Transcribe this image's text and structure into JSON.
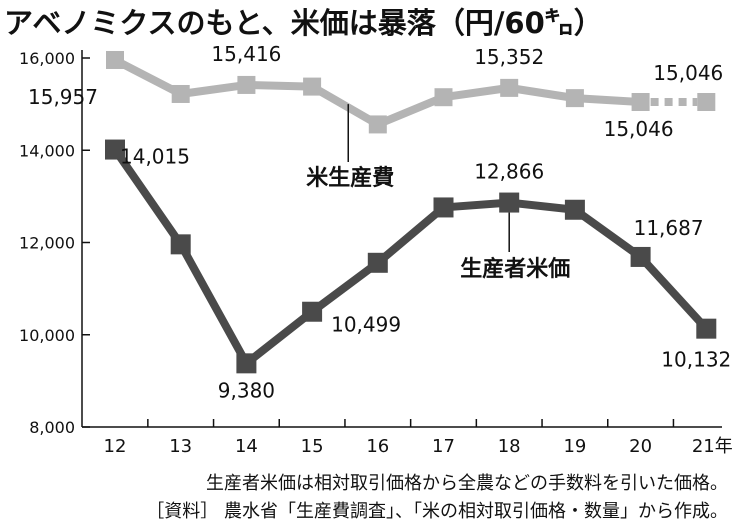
{
  "header": {
    "title": "アベノミクスのもと、米価は暴落",
    "unit": "（円/60㌔）"
  },
  "notes": {
    "line1": "生産者米価は相対取引価格から全農などの手数料を引いた価格。",
    "line2": "［資料］ 農水省「生産費調査」、「米の相対取引価格・数量」から作成。"
  },
  "colors": {
    "cost_series": "#b4b4b4",
    "price_series": "#4a4a4a",
    "axis": "#111111"
  },
  "chart_data": {
    "type": "line",
    "x": [
      "12",
      "13",
      "14",
      "15",
      "16",
      "17",
      "18",
      "19",
      "20",
      "21年"
    ],
    "ylim": [
      8000,
      16000
    ],
    "yticks": [
      "8,000",
      "10,000",
      "12,000",
      "14,000",
      "16,000"
    ],
    "ytick_values": [
      8000,
      10000,
      12000,
      14000,
      16000
    ],
    "grid": false,
    "series": [
      {
        "name": "米生産費",
        "values": [
          15957,
          15220,
          15416,
          15380,
          14560,
          15150,
          15352,
          15130,
          15046,
          15046
        ],
        "projected_last": true,
        "data_labels": [
          {
            "index": 0,
            "text": "15,957"
          },
          {
            "index": 2,
            "text": "15,416"
          },
          {
            "index": 6,
            "text": "15,352"
          },
          {
            "index": 8,
            "text": "15,046"
          },
          {
            "index": 9,
            "text": "15,046"
          }
        ]
      },
      {
        "name": "生産者米価",
        "values": [
          14015,
          11960,
          9380,
          10499,
          11560,
          12760,
          12866,
          12710,
          11687,
          10132
        ],
        "projected_last": false,
        "data_labels": [
          {
            "index": 0,
            "text": "14,015"
          },
          {
            "index": 2,
            "text": "9,380"
          },
          {
            "index": 3,
            "text": "10,499"
          },
          {
            "index": 6,
            "text": "12,866"
          },
          {
            "index": 8,
            "text": "11,687"
          },
          {
            "index": 9,
            "text": "10,132"
          }
        ]
      }
    ]
  }
}
